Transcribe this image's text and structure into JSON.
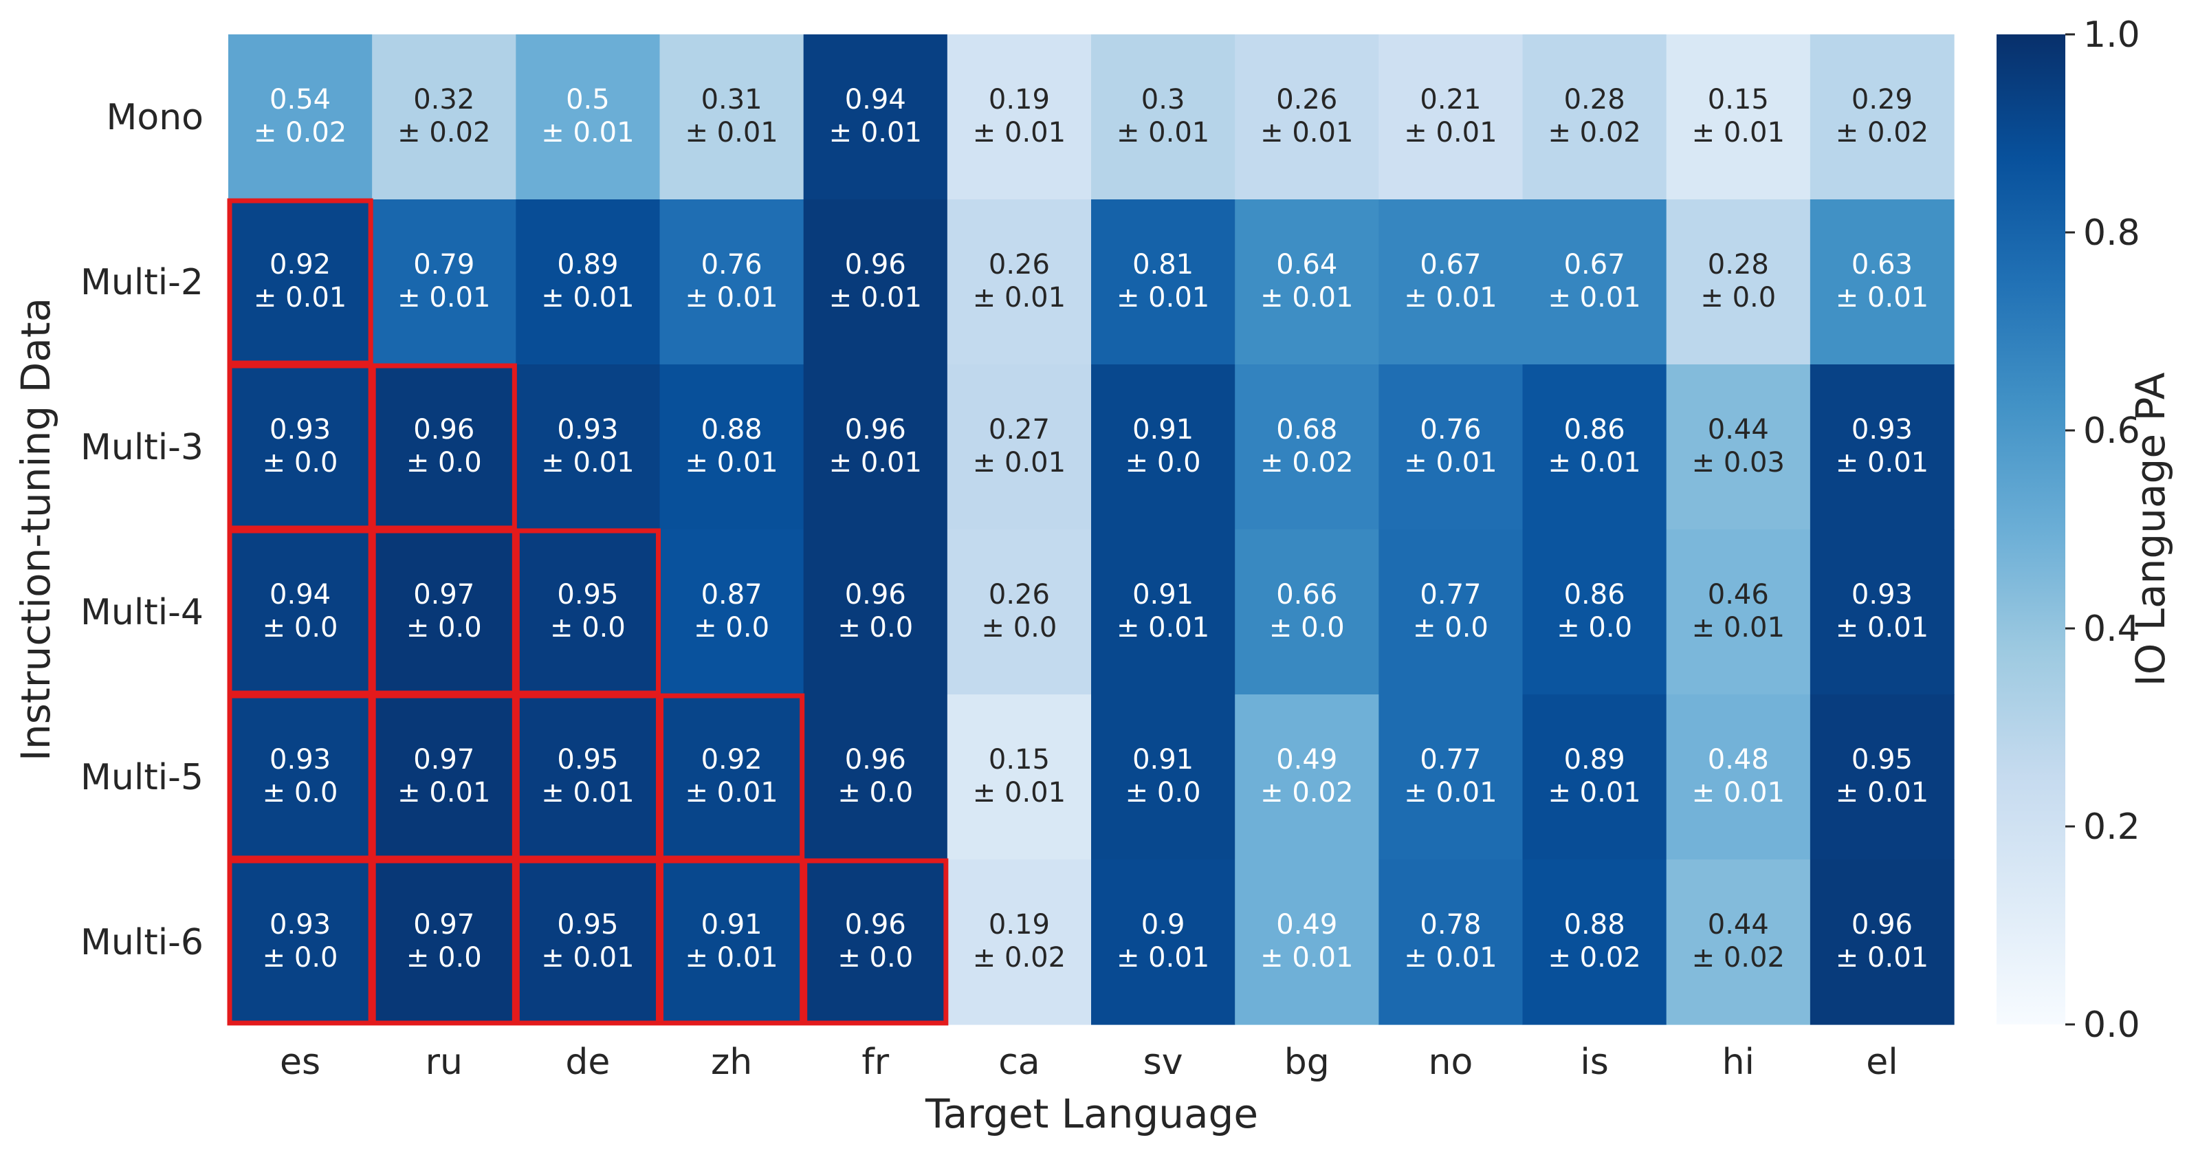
{
  "chart_data": {
    "type": "heatmap",
    "title": "",
    "xlabel": "Target Language",
    "ylabel": "Instruction-tuning Data",
    "colorbar_label": "IO Language PA",
    "colorbar_ticks": [
      "0.0",
      "0.2",
      "0.4",
      "0.6",
      "0.8",
      "1.0"
    ],
    "colorbar_range": [
      0.0,
      1.0
    ],
    "colormap": "Blues",
    "colormap_stops": [
      "#f7fbff",
      "#deebf7",
      "#c6dbef",
      "#9ecae1",
      "#6baed6",
      "#4292c6",
      "#2171b5",
      "#08519c",
      "#08306b"
    ],
    "x_categories": [
      "es",
      "ru",
      "de",
      "zh",
      "fr",
      "ca",
      "sv",
      "bg",
      "no",
      "is",
      "hi",
      "el"
    ],
    "y_categories": [
      "Mono",
      "Multi-2",
      "Multi-3",
      "Multi-4",
      "Multi-5",
      "Multi-6"
    ],
    "values": [
      [
        0.54,
        0.32,
        0.5,
        0.31,
        0.94,
        0.19,
        0.3,
        0.26,
        0.21,
        0.28,
        0.15,
        0.29
      ],
      [
        0.92,
        0.79,
        0.89,
        0.76,
        0.96,
        0.26,
        0.81,
        0.64,
        0.67,
        0.67,
        0.28,
        0.63
      ],
      [
        0.93,
        0.96,
        0.93,
        0.88,
        0.96,
        0.27,
        0.91,
        0.68,
        0.76,
        0.86,
        0.44,
        0.93
      ],
      [
        0.94,
        0.97,
        0.95,
        0.87,
        0.96,
        0.26,
        0.91,
        0.66,
        0.77,
        0.86,
        0.46,
        0.93
      ],
      [
        0.93,
        0.97,
        0.95,
        0.92,
        0.96,
        0.15,
        0.91,
        0.49,
        0.77,
        0.89,
        0.48,
        0.95
      ],
      [
        0.93,
        0.97,
        0.95,
        0.91,
        0.96,
        0.19,
        0.9,
        0.49,
        0.78,
        0.88,
        0.44,
        0.96
      ]
    ],
    "errors": [
      [
        "0.02",
        "0.02",
        "0.01",
        "0.01",
        "0.01",
        "0.01",
        "0.01",
        "0.01",
        "0.01",
        "0.02",
        "0.01",
        "0.02"
      ],
      [
        "0.01",
        "0.01",
        "0.01",
        "0.01",
        "0.01",
        "0.01",
        "0.01",
        "0.01",
        "0.01",
        "0.01",
        "0.0",
        "0.01"
      ],
      [
        "0.0",
        "0.0",
        "0.01",
        "0.01",
        "0.01",
        "0.01",
        "0.0",
        "0.02",
        "0.01",
        "0.01",
        "0.03",
        "0.01"
      ],
      [
        "0.0",
        "0.0",
        "0.0",
        "0.0",
        "0.0",
        "0.0",
        "0.01",
        "0.0",
        "0.0",
        "0.0",
        "0.01",
        "0.01"
      ],
      [
        "0.0",
        "0.01",
        "0.01",
        "0.01",
        "0.0",
        "0.01",
        "0.0",
        "0.02",
        "0.01",
        "0.01",
        "0.01",
        "0.01"
      ],
      [
        "0.0",
        "0.0",
        "0.01",
        "0.01",
        "0.0",
        "0.02",
        "0.01",
        "0.01",
        "0.01",
        "0.02",
        "0.02",
        "0.01"
      ]
    ],
    "highlighted_cells": [
      [
        1,
        0
      ],
      [
        2,
        0
      ],
      [
        2,
        1
      ],
      [
        3,
        0
      ],
      [
        3,
        1
      ],
      [
        3,
        2
      ],
      [
        4,
        0
      ],
      [
        4,
        1
      ],
      [
        4,
        2
      ],
      [
        4,
        3
      ],
      [
        5,
        0
      ],
      [
        5,
        1
      ],
      [
        5,
        2
      ],
      [
        5,
        3
      ],
      [
        5,
        4
      ]
    ],
    "highlight_color": "#e31a1c"
  }
}
